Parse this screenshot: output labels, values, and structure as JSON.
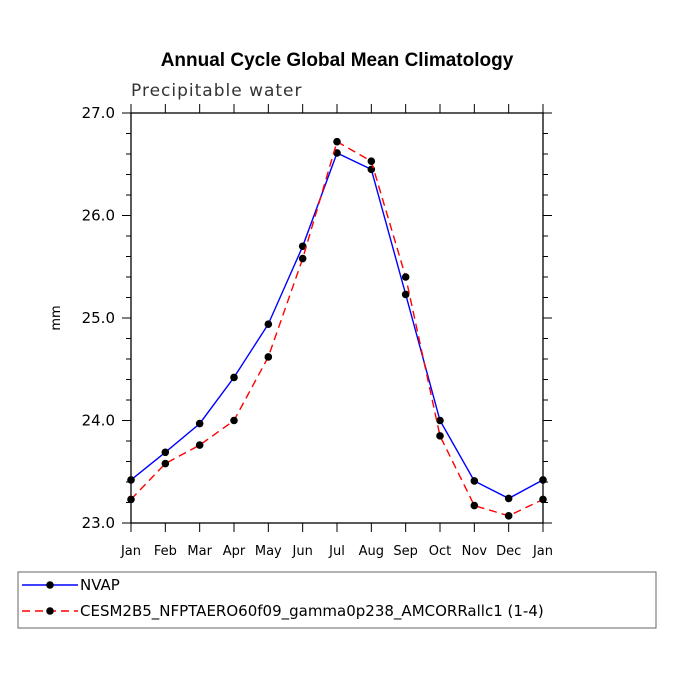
{
  "chart_data": {
    "type": "line",
    "title": "Annual Cycle Global Mean Climatology",
    "subtitle": "Precipitable water",
    "xlabel": "",
    "ylabel": "mm",
    "ylim": [
      23.0,
      27.0
    ],
    "yticks": [
      "23.0",
      "24.0",
      "25.0",
      "26.0",
      "27.0"
    ],
    "categories": [
      "Jan",
      "Feb",
      "Mar",
      "Apr",
      "May",
      "Jun",
      "Jul",
      "Aug",
      "Sep",
      "Oct",
      "Nov",
      "Dec",
      "Jan"
    ],
    "series": [
      {
        "name": "NVAP",
        "color": "#0000ff",
        "dash": "solid",
        "values": [
          23.42,
          23.69,
          23.97,
          24.42,
          24.94,
          25.7,
          26.61,
          26.45,
          25.23,
          24.0,
          23.41,
          23.24,
          23.42
        ]
      },
      {
        "name": "CESM2B5_NFPTAERO60f09_gamma0p238_AMCORRallc1 (1-4)",
        "color": "#ff0000",
        "dash": "dashed",
        "values": [
          23.23,
          23.58,
          23.76,
          24.0,
          24.62,
          25.58,
          26.72,
          26.53,
          25.4,
          23.85,
          23.17,
          23.07,
          23.23
        ]
      }
    ],
    "legend_position": "bottom"
  }
}
